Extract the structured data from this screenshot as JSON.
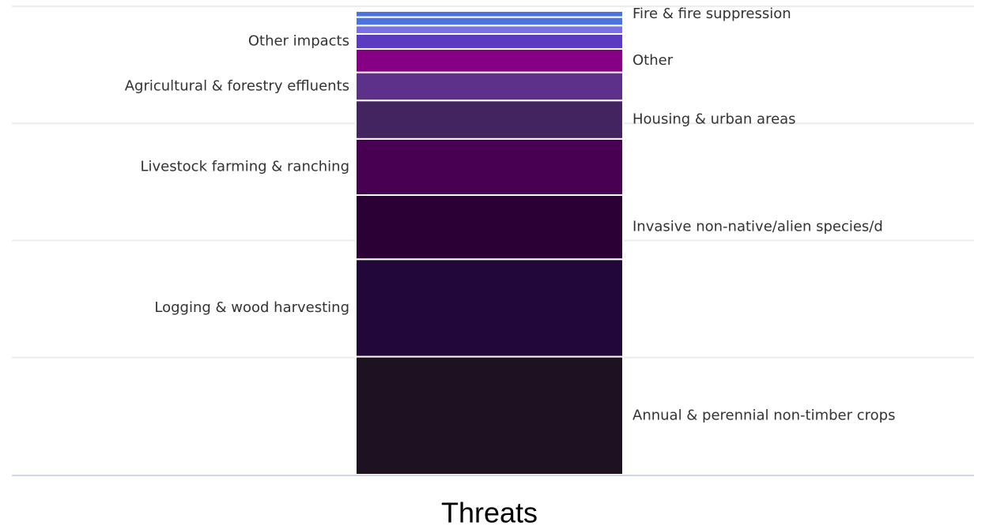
{
  "chart_data": {
    "type": "bar",
    "stacked": true,
    "categories": [
      "Threats"
    ],
    "ylim": [
      0,
      100
    ],
    "grid": true,
    "legend": "none",
    "series": [
      {
        "name": "Annual & perennial non-timber crops",
        "values": [
          25.2
        ],
        "color": "#1c1222",
        "label_side": "right"
      },
      {
        "name": "Logging & wood harvesting",
        "values": [
          20.8
        ],
        "color": "#22073a",
        "label_side": "left"
      },
      {
        "name": "Invasive non-native/alien species/d",
        "values": [
          13.7
        ],
        "color": "#2b0034",
        "label_side": "right"
      },
      {
        "name": "Livestock farming & ranching",
        "values": [
          12.0
        ],
        "color": "#480052",
        "label_side": "left"
      },
      {
        "name": "Housing & urban areas",
        "values": [
          8.2
        ],
        "color": "#432461",
        "label_side": "right"
      },
      {
        "name": "Agricultural & forestry effluents",
        "values": [
          6.0
        ],
        "color": "#5d3189",
        "label_side": "left"
      },
      {
        "name": "Other",
        "values": [
          5.0
        ],
        "color": "#850083",
        "label_side": "right"
      },
      {
        "name": "Other impacts",
        "values": [
          3.2
        ],
        "color": "#5b3bc0",
        "label_side": "left"
      },
      {
        "name": "",
        "values": [
          1.8
        ],
        "color": "#7b70e6",
        "label_side": "none"
      },
      {
        "name": "",
        "values": [
          1.8
        ],
        "color": "#4a73e0",
        "label_side": "none"
      },
      {
        "name": "Fire & fire suppression",
        "values": [
          1.3
        ],
        "color": "#4a73e0",
        "label_side": "right"
      }
    ]
  }
}
